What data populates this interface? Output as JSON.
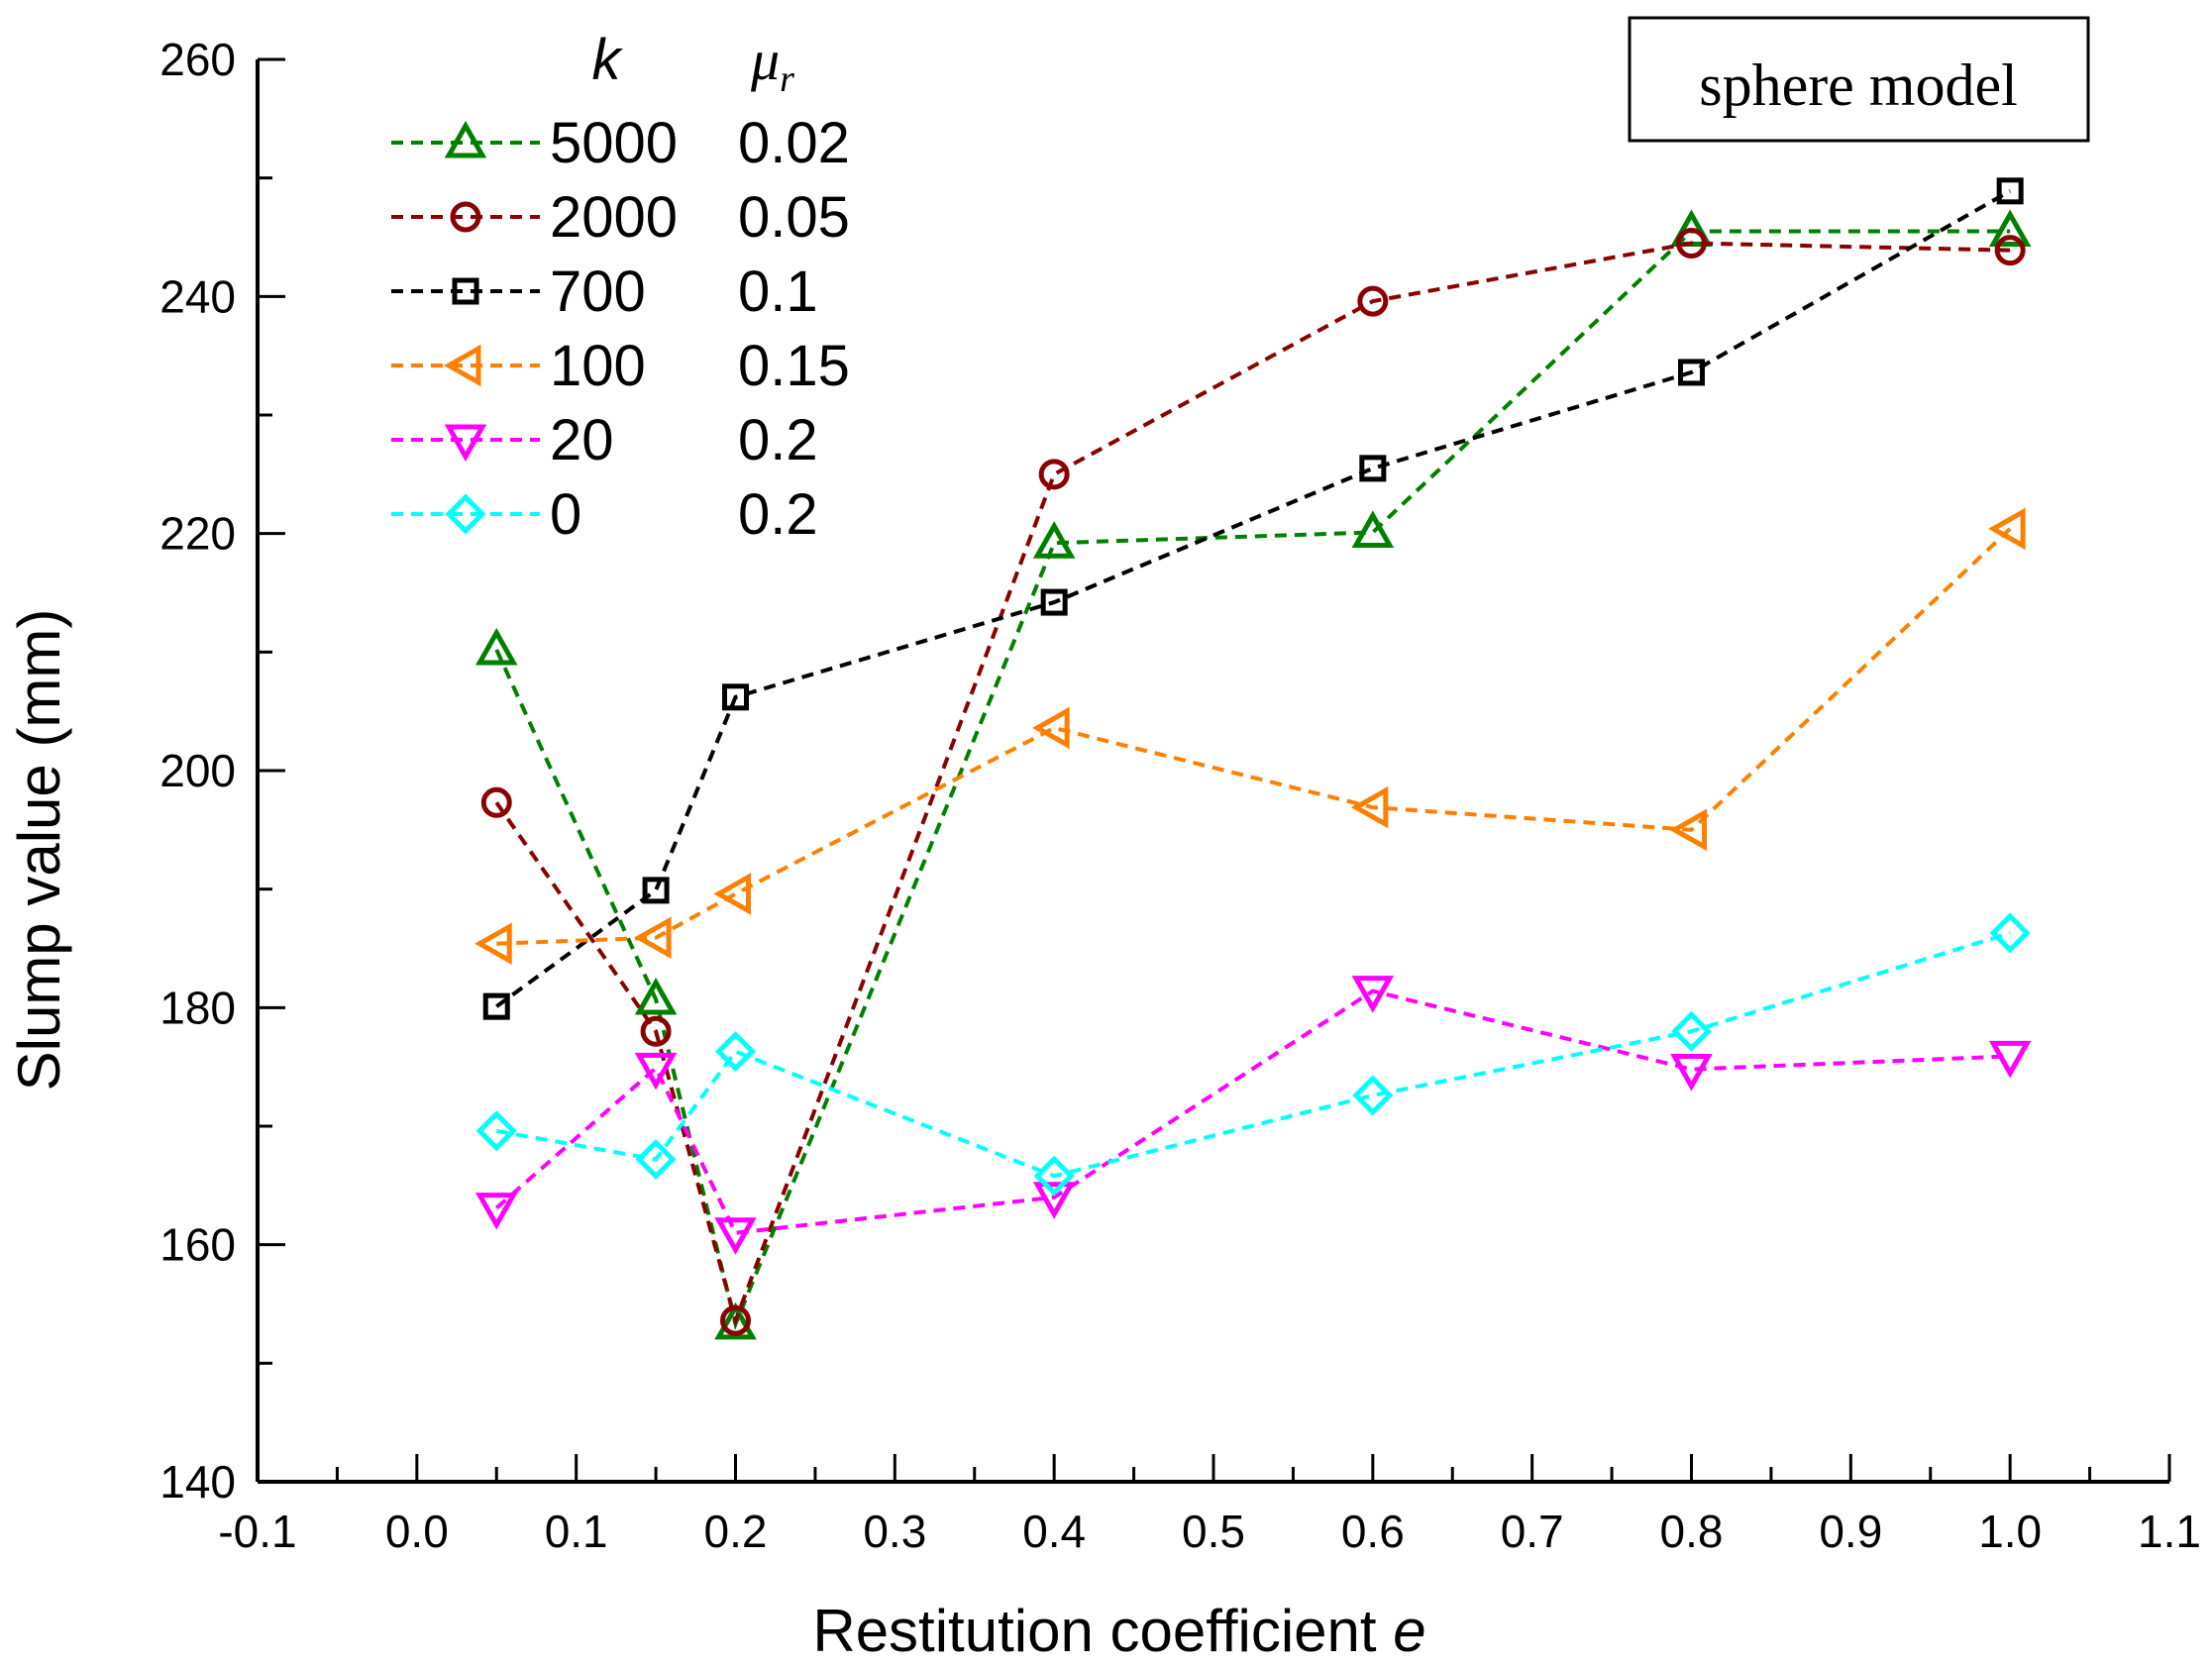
{
  "chart_data": {
    "type": "line",
    "xlabel_main": "Restitution coefficient ",
    "xlabel_var": "e",
    "ylabel": "Slump value (mm)",
    "xlim": [
      -0.1,
      1.1
    ],
    "ylim": [
      140,
      260
    ],
    "xticks": [
      -0.1,
      0.0,
      0.1,
      0.2,
      0.3,
      0.4,
      0.5,
      0.6,
      0.7,
      0.8,
      0.9,
      1.0,
      1.1
    ],
    "xtick_labels": [
      "-0.1",
      "0.0",
      "0.1",
      "0.2",
      "0.3",
      "0.4",
      "0.5",
      "0.6",
      "0.7",
      "0.8",
      "0.9",
      "1.0",
      "1.1"
    ],
    "yticks": [
      140,
      160,
      180,
      200,
      220,
      240,
      260
    ],
    "ytick_labels": [
      "140",
      "160",
      "180",
      "200",
      "220",
      "240",
      "260"
    ],
    "annotation": "sphere model",
    "legend_header": {
      "k": "k",
      "mu": "μ",
      "mu_sub": "r"
    },
    "legend_position": "top-left",
    "series": [
      {
        "k": "5000",
        "mu": "0.02",
        "color": "#008000",
        "marker": "triangle-up",
        "x": [
          0.05,
          0.15,
          0.2,
          0.4,
          0.6,
          0.8,
          1.0
        ],
        "y": [
          210.2,
          180.7,
          153.3,
          219.2,
          220.1,
          245.5,
          245.5
        ]
      },
      {
        "k": "2000",
        "mu": "0.05",
        "color": "#8b0000",
        "marker": "circle",
        "x": [
          0.05,
          0.15,
          0.2,
          0.4,
          0.6,
          0.8,
          1.0
        ],
        "y": [
          197.3,
          178.0,
          153.6,
          225.0,
          239.6,
          244.5,
          243.9
        ]
      },
      {
        "k": "700",
        "mu": "0.1",
        "color": "#000000",
        "marker": "square",
        "x": [
          0.05,
          0.15,
          0.2,
          0.4,
          0.6,
          0.8,
          1.0
        ],
        "y": [
          180.1,
          189.9,
          206.2,
          214.2,
          225.5,
          233.6,
          248.9
        ]
      },
      {
        "k": "100",
        "mu": "0.15",
        "color": "#ff8000",
        "marker": "triangle-left",
        "x": [
          0.05,
          0.15,
          0.2,
          0.4,
          0.6,
          0.8,
          1.0
        ],
        "y": [
          185.4,
          185.9,
          189.6,
          203.6,
          196.9,
          195.0,
          220.4
        ]
      },
      {
        "k": "20",
        "mu": "0.2",
        "color": "#ff00ff",
        "marker": "triangle-down",
        "x": [
          0.05,
          0.15,
          0.2,
          0.4,
          0.6,
          0.8,
          1.0
        ],
        "y": [
          163.1,
          174.9,
          161.0,
          164.0,
          181.4,
          174.8,
          175.9
        ]
      },
      {
        "k": "0",
        "mu": "0.2",
        "color": "#00ffff",
        "marker": "diamond",
        "x": [
          0.05,
          0.15,
          0.2,
          0.4,
          0.6,
          0.8,
          1.0
        ],
        "y": [
          169.6,
          167.2,
          176.3,
          165.8,
          172.6,
          178.0,
          186.3
        ]
      }
    ]
  }
}
